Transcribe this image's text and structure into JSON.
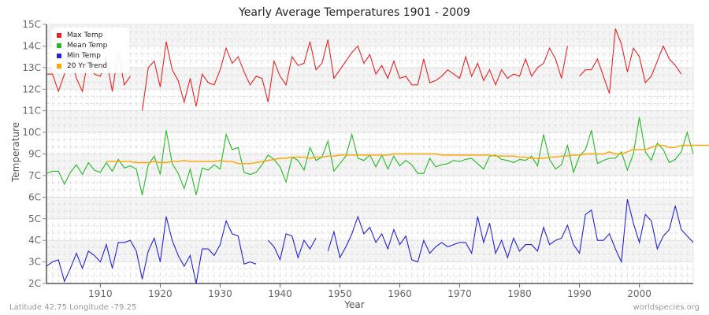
{
  "title": "Yearly Average Temperatures 1901 - 2009",
  "footer": {
    "location": "Latitude 42.75 Longitude -79.25",
    "source": "worldspecies.org"
  },
  "legend": [
    {
      "label": "Max Temp",
      "color": "#ee2222"
    },
    {
      "label": "Mean Temp",
      "color": "#22bb22"
    },
    {
      "label": "Min Temp",
      "color": "#2222dd"
    },
    {
      "label": "20 Yr Trend",
      "color": "#ffa500"
    }
  ],
  "chart_data": {
    "type": "line",
    "title": "Yearly Average Temperatures 1901 - 2009",
    "xlabel": "Year",
    "ylabel": "Temperature",
    "x_range": [
      1901,
      2009
    ],
    "x_ticks": [
      1910,
      1920,
      1930,
      1940,
      1950,
      1960,
      1970,
      1980,
      1990,
      2000
    ],
    "y_tick_labels": [
      "15C",
      "14C",
      "13C",
      "12C",
      "11C",
      "10C",
      "9C",
      "7C",
      "6C",
      "5C",
      "4C",
      "3C",
      "2C"
    ],
    "grid": true,
    "legend_position": "top-left",
    "series": [
      {
        "name": "Max Temp",
        "color": "#ee2222",
        "start_year": 1901,
        "values": [
          12.7,
          12.7,
          11.9,
          12.7,
          13.6,
          12.5,
          11.9,
          13.5,
          12.7,
          12.6,
          13.4,
          11.9,
          13.7,
          12.2,
          12.6,
          null,
          11.0,
          13.0,
          13.3,
          12.1,
          14.2,
          12.9,
          12.4,
          11.4,
          12.5,
          11.2,
          12.7,
          12.3,
          12.2,
          12.9,
          13.9,
          13.2,
          13.5,
          12.8,
          12.2,
          12.6,
          12.5,
          11.4,
          13.3,
          12.6,
          12.2,
          13.5,
          13.1,
          13.2,
          14.2,
          12.9,
          13.2,
          14.3,
          12.5,
          12.9,
          13.3,
          13.7,
          14.0,
          13.2,
          13.6,
          12.7,
          13.1,
          12.5,
          13.3,
          12.5,
          12.6,
          12.2,
          12.2,
          13.4,
          12.3,
          12.4,
          12.6,
          12.9,
          12.7,
          12.5,
          13.5,
          12.6,
          13.2,
          12.4,
          12.9,
          12.2,
          12.9,
          12.5,
          12.7,
          12.6,
          13.4,
          12.6,
          13.0,
          13.2,
          13.9,
          13.4,
          12.5,
          14.0,
          null,
          12.6,
          12.9,
          12.9,
          13.4,
          12.6,
          11.8,
          14.8,
          14.1,
          12.8,
          13.9,
          13.5,
          12.3,
          12.6,
          13.3,
          14.0,
          13.4,
          13.1,
          12.7
        ]
      },
      {
        "name": "Mean Temp",
        "color": "#22bb22",
        "start_year": 1901,
        "values": [
          7.2,
          7.4,
          7.4,
          6.6,
          7.3,
          8.0,
          7.1,
          8.2,
          7.5,
          7.3,
          8.2,
          7.4,
          8.5,
          7.7,
          7.9,
          7.6,
          6.1,
          8.0,
          8.8,
          7.1,
          10.1,
          8.1,
          7.2,
          6.4,
          7.6,
          6.1,
          7.7,
          7.5,
          8.0,
          7.6,
          9.9,
          9.2,
          9.3,
          7.3,
          7.1,
          7.3,
          8.0,
          8.9,
          8.5,
          7.8,
          6.7,
          8.7,
          8.4,
          7.5,
          9.3,
          8.4,
          8.7,
          9.6,
          7.4,
          8.1,
          8.8,
          9.9,
          8.6,
          8.4,
          8.9,
          7.8,
          8.9,
          7.6,
          8.8,
          7.9,
          8.4,
          8.0,
          7.2,
          7.2,
          8.6,
          7.8,
          8.0,
          8.1,
          8.4,
          8.3,
          8.5,
          8.6,
          8.1,
          7.6,
          8.8,
          8.9,
          8.5,
          8.4,
          8.2,
          8.5,
          8.4,
          8.8,
          7.9,
          9.9,
          8.5,
          7.6,
          8.0,
          9.4,
          7.3,
          8.8,
          9.2,
          10.1,
          8.1,
          8.4,
          8.6,
          8.6,
          9.1,
          7.5,
          9.0,
          10.7,
          9.1,
          8.4,
          9.5,
          9.2,
          8.2,
          8.5,
          9.1,
          10.0,
          9.0
        ]
      },
      {
        "name": "Min Temp",
        "color": "#2222dd",
        "start_year": 1901,
        "values": [
          2.8,
          3.0,
          3.1,
          2.1,
          2.7,
          3.4,
          2.7,
          3.5,
          3.3,
          3.0,
          3.8,
          2.7,
          3.9,
          3.9,
          4.0,
          3.5,
          2.2,
          3.5,
          4.1,
          3.0,
          5.1,
          4.0,
          3.3,
          2.8,
          3.3,
          2.0,
          3.6,
          3.6,
          3.3,
          3.8,
          4.9,
          4.3,
          4.2,
          2.9,
          3.0,
          2.9,
          null,
          4.0,
          3.7,
          3.1,
          4.3,
          4.2,
          3.2,
          4.0,
          3.6,
          4.1,
          null,
          3.5,
          4.4,
          3.2,
          3.7,
          4.3,
          5.1,
          4.3,
          4.6,
          3.9,
          4.3,
          3.6,
          4.5,
          3.8,
          4.2,
          3.1,
          3.0,
          4.0,
          3.4,
          3.7,
          3.9,
          3.7,
          3.8,
          3.9,
          3.9,
          3.4,
          5.1,
          3.9,
          4.8,
          3.4,
          4.0,
          3.2,
          4.1,
          3.5,
          3.8,
          3.8,
          3.5,
          4.6,
          3.8,
          4.0,
          4.1,
          4.7,
          3.8,
          3.4,
          5.2,
          5.4,
          4.0,
          4.0,
          4.3,
          3.6,
          3.0,
          5.9,
          4.8,
          3.9,
          5.2,
          4.9,
          3.6,
          4.2,
          4.5,
          5.6,
          4.5,
          4.2,
          3.9
        ]
      },
      {
        "name": "20 Yr Trend",
        "color": "#ffa500",
        "start_year": 1911,
        "values": [
          8.3,
          8.3,
          8.3,
          8.3,
          8.3,
          8.2,
          8.2,
          8.2,
          8.3,
          8.2,
          8.2,
          8.3,
          8.3,
          8.4,
          8.3,
          8.3,
          8.3,
          8.3,
          8.3,
          8.4,
          8.3,
          8.3,
          8.1,
          8.1,
          8.1,
          8.2,
          8.3,
          8.4,
          8.5,
          8.6,
          8.6,
          8.7,
          8.7,
          8.7,
          8.6,
          8.7,
          8.7,
          8.8,
          8.8,
          8.9,
          8.9,
          8.9,
          8.9,
          8.9,
          8.9,
          8.9,
          8.9,
          8.9,
          9.0,
          9.0,
          9.0,
          9.0,
          9.0,
          9.0,
          9.0,
          9.0,
          8.9,
          8.9,
          8.9,
          8.9,
          8.9,
          8.9,
          8.9,
          8.9,
          8.9,
          8.8,
          8.8,
          8.8,
          8.8,
          8.7,
          8.7,
          8.6,
          8.6,
          8.6,
          8.7,
          8.7,
          8.8,
          8.8,
          8.9,
          8.9,
          9.0,
          9.0,
          9.0,
          9.0,
          9.1,
          9.0,
          9.0,
          9.1,
          9.2,
          9.2,
          9.2,
          9.3,
          9.4,
          9.4,
          9.3,
          9.3,
          9.4,
          9.4,
          9.4,
          9.4,
          9.4,
          9.4,
          9.4,
          9.4,
          9.4,
          9.4,
          9.4,
          9.4,
          9.4
        ]
      }
    ]
  }
}
